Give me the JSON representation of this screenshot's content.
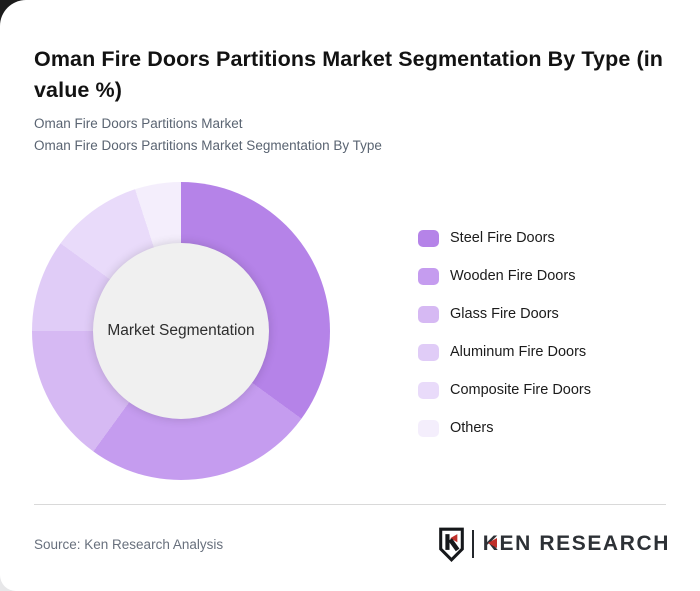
{
  "page": {
    "title": "Oman Fire Doors Partitions Market Segmentation By Type (in value %)",
    "subtitle_line1": "Oman Fire Doors Partitions Market",
    "subtitle_line2": "Oman Fire Doors Partitions Market Segmentation By Type",
    "source": "Source: Ken Research Analysis"
  },
  "logo": {
    "shield_letter": "K",
    "brand": "KEN RESEARCH",
    "accent_color": "#c0302a",
    "text_color": "#2d3136"
  },
  "chart_data": {
    "type": "pie",
    "variant": "donut",
    "title": "Oman Fire Doors Partitions Market Segmentation By Type (in value %)",
    "center_label": "Market Segmentation",
    "categories": [
      "Steel Fire Doors",
      "Wooden Fire Doors",
      "Glass Fire Doors",
      "Aluminum Fire Doors",
      "Composite Fire Doors",
      "Others"
    ],
    "values": [
      35,
      25,
      15,
      10,
      10,
      5
    ],
    "unit": "% of value",
    "colors": [
      "#b583e8",
      "#c59cef",
      "#d6b9f3",
      "#e0ccf7",
      "#e9dbfa",
      "#f4eefc"
    ],
    "start_angle_deg": 0,
    "direction": "clockwise",
    "legend_position": "right",
    "inner_radius_ratio": 0.59,
    "center_fill": "#f0f0f0"
  }
}
